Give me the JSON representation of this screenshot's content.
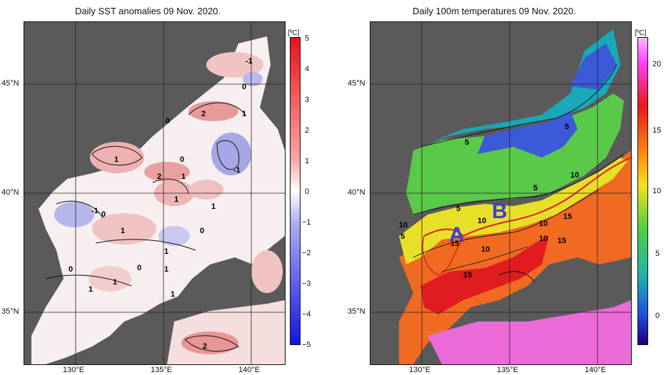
{
  "left_panel": {
    "title": "Daily SST anomalies 09 Nov. 2020.",
    "unit": "[ºC]",
    "colorbar_ticks": [
      "5",
      "4",
      "3",
      "2",
      "1",
      "0",
      "−1",
      "−2",
      "−3",
      "−4",
      "−5"
    ],
    "contour_labels": [
      "-1",
      "0",
      "2",
      "1",
      "0",
      "0",
      "-1",
      "1",
      "2",
      "1",
      "1",
      "1",
      "-1",
      "0",
      "1",
      "0",
      "1",
      "1",
      "0",
      "1",
      "0",
      "1",
      "1",
      "2"
    ]
  },
  "right_panel": {
    "title": "Daily 100m temperatures 09 Nov. 2020.",
    "unit": "[ºC]",
    "colorbar_ticks": [
      "20",
      "15",
      "10",
      "5",
      "0"
    ],
    "contour_labels": [
      "5",
      "5",
      "10",
      "5",
      "5",
      "10",
      "10",
      "5",
      "10",
      "15",
      "15",
      "10",
      "15",
      "10",
      "15"
    ],
    "markers": [
      "A",
      "B"
    ]
  },
  "axes": {
    "lat_labels": [
      "45°N",
      "40°N",
      "35°N"
    ],
    "lon_labels": [
      "130°E",
      "135°E",
      "140°E"
    ]
  },
  "colors": {
    "land": "#555555",
    "sst_positive": "#e07a7a",
    "sst_negative": "#6a6ad8",
    "marker_letters": "#3b3fd8",
    "red_line": "#e0201e"
  }
}
